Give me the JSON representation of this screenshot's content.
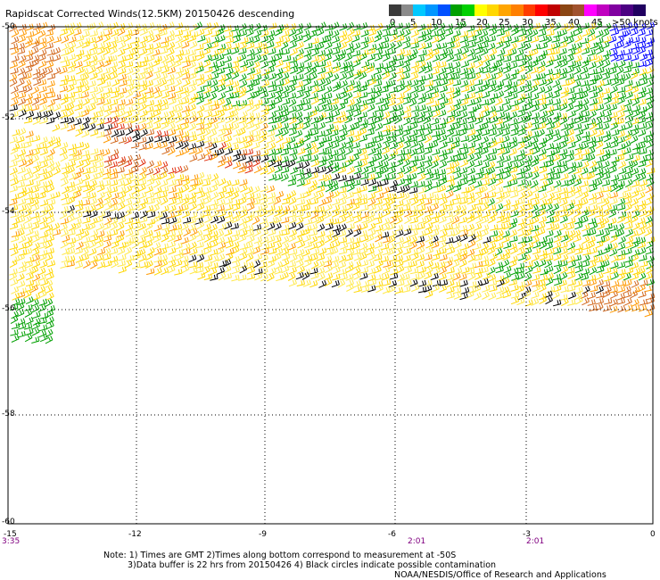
{
  "title": "Rapidscat Corrected Winds(12.5KM) 20150426 descending",
  "legend": {
    "unit_label": ">50 knots",
    "labels": [
      "0",
      "5",
      "10",
      "15",
      "20",
      "25",
      "30",
      "35",
      "40",
      "45"
    ],
    "colors": [
      "#3a3a3a",
      "#8a8a8a",
      "#00c8ff",
      "#0096ff",
      "#0050ff",
      "#00a000",
      "#00d000",
      "#ffff00",
      "#ffd700",
      "#ffa500",
      "#ff7f00",
      "#ff3c00",
      "#ff0000",
      "#c00000",
      "#8b4513",
      "#a0522d",
      "#ff00ff",
      "#c000c0",
      "#8000a0",
      "#4b0082",
      "#200060"
    ]
  },
  "map": {
    "lat_labels": [
      "-50",
      "-52",
      "-54",
      "-56",
      "-58",
      "-60"
    ],
    "lon_labels": [
      "-15",
      "-12",
      "-9",
      "-6",
      "-3",
      "0"
    ],
    "time_labels": [
      "3:35",
      "2:01",
      "2:01"
    ]
  },
  "notes": {
    "line1": "Note: 1) Times are GMT 2)Times along bottom correspond to measurement at -50S",
    "line2": "3)Data buffer is 22 hrs from 20150426 4) Black circles indicate possible contamination",
    "line3": "NOAA/NESDIS/Office of Research and Applications"
  },
  "colors": {
    "yellow": "#ffd700",
    "light_yellow": "#ffe94a",
    "orange": "#ff9900",
    "dark_orange": "#d2691e",
    "red": "#e03010",
    "green": "#00a000",
    "dark_green": "#006400",
    "black": "#000000",
    "blue": "#0000ff"
  }
}
